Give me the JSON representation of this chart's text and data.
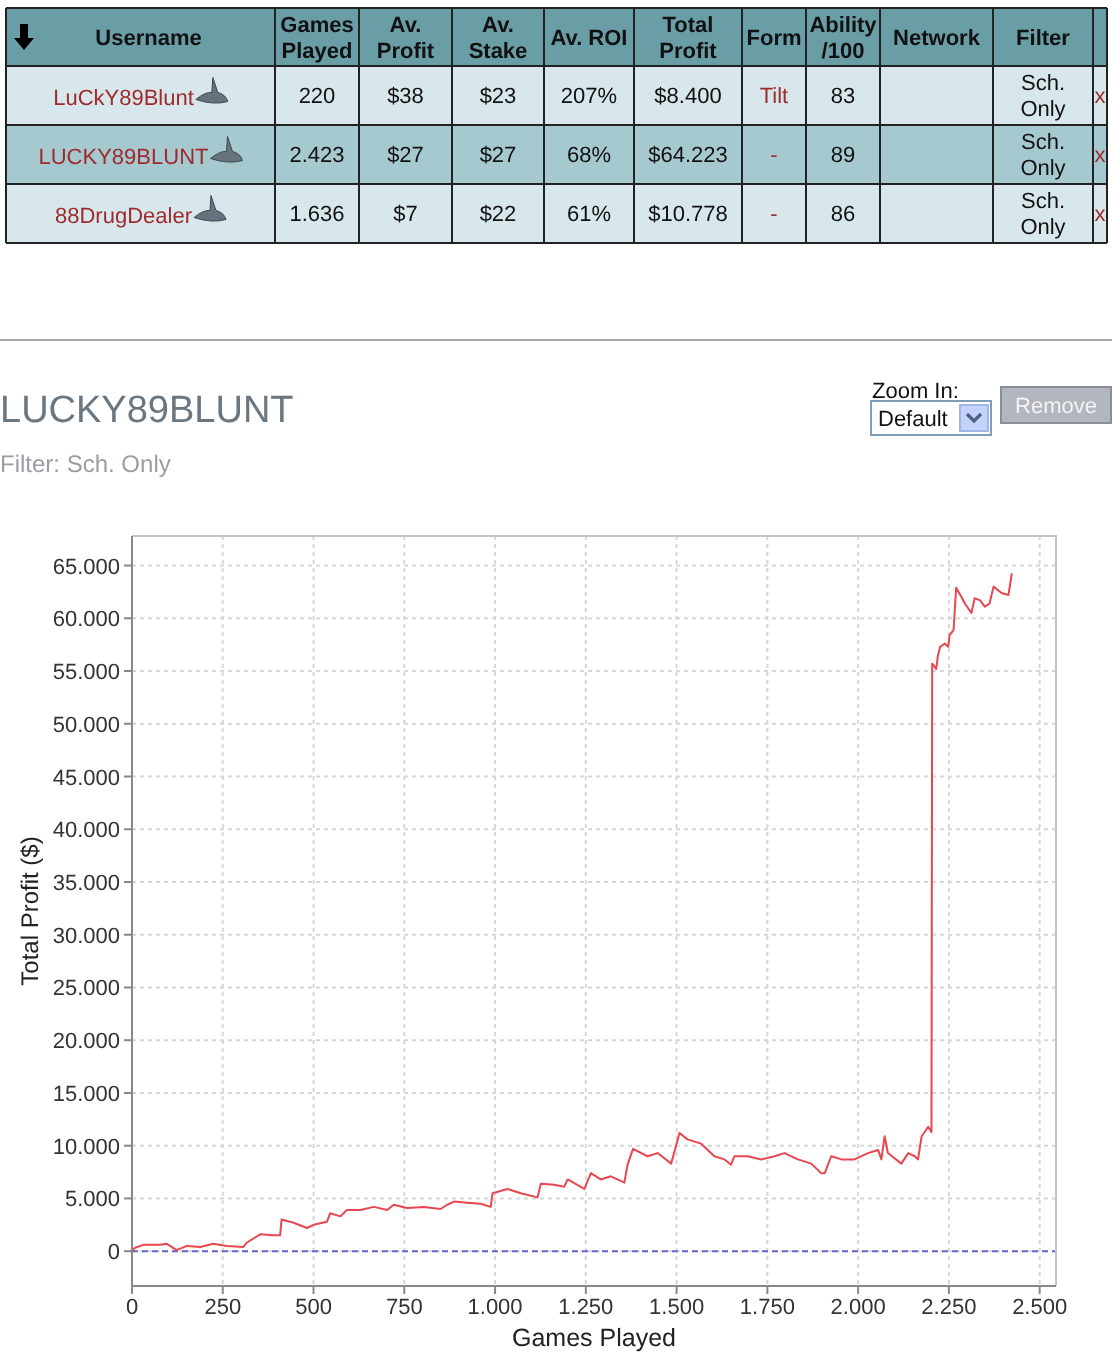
{
  "chart_data": [
    {
      "type": "other",
      "categories": [
        "Username",
        "Games Played",
        "Av. Profit",
        "Av. Stake",
        "Av. ROI",
        "Total Profit",
        "Form",
        "Ability /100",
        "Network",
        "Filter",
        null
      ],
      "cell_labels": [
        [
          "LuCkY89Blunt",
          "220",
          "$38",
          "$23",
          "207%",
          "$8.400",
          "Tilt",
          "83",
          null,
          "Sch. Only",
          "x"
        ],
        [
          "LUCKY89BLUNT",
          "2.423",
          "$27",
          "$27",
          "68%",
          "$64.223",
          "-",
          "89",
          null,
          "Sch. Only",
          "x"
        ],
        [
          "88DrugDealer",
          "1.636",
          "$7",
          "$22",
          "61%",
          "$10.778",
          "-",
          "86",
          null,
          "Sch. Only",
          "x"
        ]
      ]
    },
    {
      "type": "line",
      "title": "LUCKY89BLUNT",
      "subtitle": "Filter: Sch. Only",
      "xlabel": "Games Played",
      "ylabel": "Total Profit ($)",
      "annotations": [
        "Zoom In:",
        "Default",
        "Remove"
      ],
      "x": [
        0,
        7,
        31,
        77,
        96,
        123,
        151,
        188,
        224,
        261,
        307,
        316,
        353,
        390,
        408,
        412,
        445,
        482,
        500,
        537,
        546,
        574,
        592,
        629,
        666,
        703,
        721,
        758,
        804,
        850,
        868,
        887,
        923,
        960,
        988,
        993,
        1034,
        1071,
        1117,
        1126,
        1163,
        1190,
        1200,
        1246,
        1264,
        1291,
        1319,
        1356,
        1365,
        1380,
        1420,
        1448,
        1485,
        1508,
        1530,
        1567,
        1604,
        1632,
        1650,
        1659,
        1696,
        1733,
        1770,
        1797,
        1834,
        1871,
        1898,
        1908,
        1926,
        1954,
        1990,
        2027,
        2055,
        2064,
        2073,
        2082,
        2119,
        2138,
        2156,
        2165,
        2175,
        2193,
        2202,
        2204,
        2215,
        2220,
        2226,
        2239,
        2248,
        2252,
        2263,
        2270,
        2285,
        2294,
        2312,
        2321,
        2336,
        2349,
        2362,
        2373,
        2395,
        2414,
        2423
      ],
      "series": [
        {
          "color": "#e8474f",
          "values": [
            0,
            300,
            600,
            600,
            700,
            100,
            500,
            400,
            700,
            500,
            400,
            800,
            1600,
            1500,
            1500,
            3000,
            2700,
            2200,
            2500,
            2800,
            3600,
            3300,
            3900,
            3900,
            4200,
            3900,
            4400,
            4100,
            4200,
            4000,
            4400,
            4700,
            4600,
            4500,
            4200,
            5500,
            5900,
            5500,
            5100,
            6400,
            6300,
            6100,
            6800,
            5900,
            7400,
            6800,
            7100,
            6500,
            8200,
            9700,
            9000,
            9300,
            8300,
            11200,
            10600,
            10200,
            9000,
            8700,
            8200,
            9000,
            9000,
            8700,
            9000,
            9300,
            8700,
            8300,
            7400,
            7400,
            9000,
            8700,
            8700,
            9300,
            9600,
            8700,
            10900,
            9300,
            8300,
            9300,
            9000,
            8700,
            10900,
            11800,
            11300,
            55700,
            55200,
            56500,
            57300,
            57600,
            57300,
            58400,
            58900,
            62900,
            62000,
            61400,
            60500,
            61900,
            61700,
            61100,
            61400,
            63000,
            62400,
            62200,
            64200
          ]
        }
      ],
      "xlim": [
        0,
        2545
      ],
      "ylim": [
        -3300,
        67800
      ],
      "xticks": [
        0,
        250,
        500,
        750,
        {
          "value": 1000,
          "label": "1.000"
        },
        {
          "value": 1250,
          "label": "1.250"
        },
        {
          "value": 1500,
          "label": "1.500"
        },
        {
          "value": 1750,
          "label": "1.750"
        },
        {
          "value": 2000,
          "label": "2.000"
        },
        {
          "value": 2250,
          "label": "2.250"
        },
        {
          "value": 2500,
          "label": "2.500"
        }
      ],
      "yticks": [
        0,
        {
          "value": 5000,
          "label": "5.000"
        },
        {
          "value": 10000,
          "label": "10.000"
        },
        {
          "value": 15000,
          "label": "15.000"
        },
        {
          "value": 20000,
          "label": "20.000"
        },
        {
          "value": 25000,
          "label": "25.000"
        },
        {
          "value": 30000,
          "label": "30.000"
        },
        {
          "value": 35000,
          "label": "35.000"
        },
        {
          "value": 40000,
          "label": "40.000"
        },
        {
          "value": 45000,
          "label": "45.000"
        },
        {
          "value": 50000,
          "label": "50.000"
        },
        {
          "value": 55000,
          "label": "55.000"
        },
        {
          "value": 60000,
          "label": "60.000"
        },
        {
          "value": 65000,
          "label": "65.000"
        }
      ],
      "grid": true,
      "ref_lines": [
        {
          "axis": "y",
          "value": 0,
          "color": "#6666cc",
          "line_style": "dashed"
        }
      ]
    }
  ]
}
